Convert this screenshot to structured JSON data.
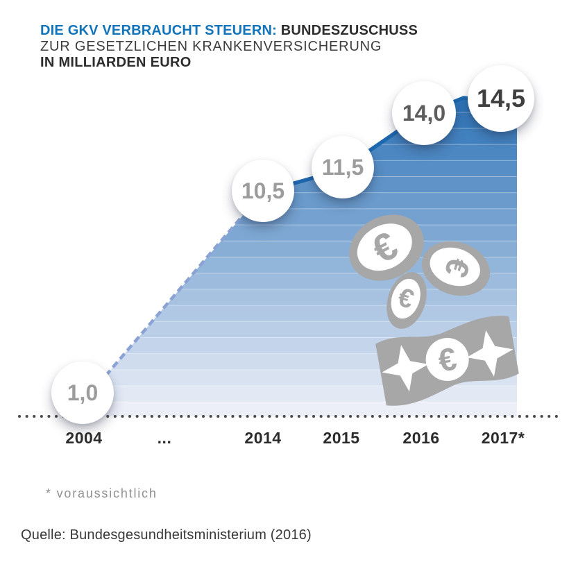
{
  "header": {
    "title_highlight": "DIE GKV VERBRAUCHT STEUERN:",
    "title_rest": "BUNDESZUSCHUSS",
    "subtitle": "ZUR GESETZLICHEN KRANKENVERSICHERUNG",
    "unit_line": "IN MILLIARDEN EURO"
  },
  "chart_data": {
    "type": "area",
    "title": "Die GKV verbraucht Steuern: Bundeszuschuss zur gesetzlichen Krankenversicherung",
    "unit": "Milliarden Euro",
    "categories": [
      "2004",
      "2014",
      "2015",
      "2016",
      "2017"
    ],
    "values": [
      1.0,
      10.5,
      11.5,
      14.0,
      14.5
    ],
    "value_labels": [
      "1,0",
      "10,5",
      "11,5",
      "14,0",
      "14,5"
    ],
    "axis_labels": [
      "2004",
      "...",
      "2014",
      "2015",
      "2016",
      "2017*"
    ],
    "x_axis_note": "axis broken between 2004 and 2014 (dashed segment)",
    "ylim": [
      0,
      15
    ],
    "grid": false,
    "legend": false
  },
  "footnote": "* voraussichtlich",
  "source": "Quelle: Bundesgesundheitsministerium (2016)",
  "decor": {
    "currency_symbol": "€",
    "icons": [
      "euro-coin-icon",
      "euro-coin-icon",
      "euro-coin-icon",
      "euro-banknote-icon"
    ]
  },
  "colors": {
    "accent_blue": "#1174bb",
    "line_blue": "#1e68ae",
    "dashed_blue": "#8ba3d4",
    "band_top": "#2e74b8",
    "band_bottom": "#eceff8",
    "coin_gray": "#a7a7a7",
    "dot_gray": "#4c4c4c"
  }
}
